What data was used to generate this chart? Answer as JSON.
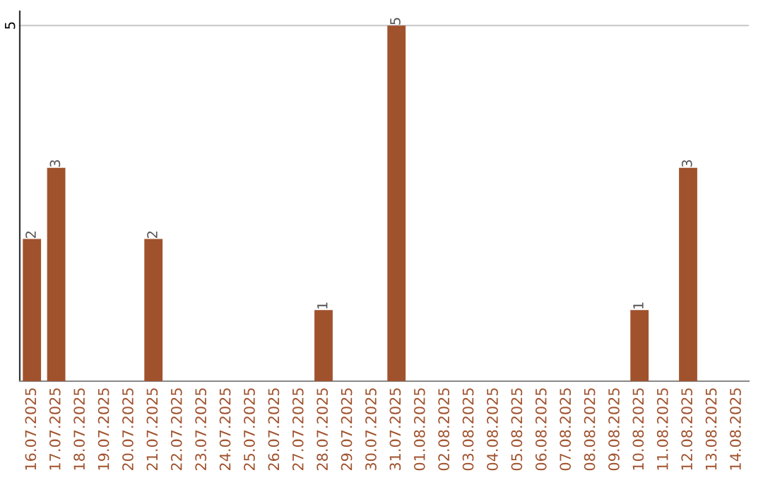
{
  "chart_data": {
    "type": "bar",
    "categories": [
      "16.07.2025",
      "17.07.2025",
      "18.07.2025",
      "19.07.2025",
      "20.07.2025",
      "21.07.2025",
      "22.07.2025",
      "23.07.2025",
      "24.07.2025",
      "25.07.2025",
      "26.07.2025",
      "27.07.2025",
      "28.07.2025",
      "29.07.2025",
      "30.07.2025",
      "31.07.2025",
      "01.08.2025",
      "02.08.2025",
      "03.08.2025",
      "04.08.2025",
      "05.08.2025",
      "06.08.2025",
      "07.08.2025",
      "08.08.2025",
      "09.08.2025",
      "10.08.2025",
      "11.08.2025",
      "12.08.2025",
      "13.08.2025",
      "14.08.2025"
    ],
    "values": [
      2,
      3,
      0,
      0,
      0,
      2,
      0,
      0,
      0,
      0,
      0,
      0,
      1,
      0,
      0,
      5,
      0,
      0,
      0,
      0,
      0,
      0,
      0,
      0,
      0,
      1,
      0,
      3,
      0,
      0
    ],
    "value_labels": [
      "2",
      "3",
      null,
      null,
      null,
      "2",
      null,
      null,
      null,
      null,
      null,
      null,
      "1",
      null,
      null,
      "5",
      null,
      null,
      null,
      null,
      null,
      null,
      null,
      null,
      null,
      "1",
      null,
      "3",
      null,
      null
    ],
    "color": "#a0522d",
    "ylim": [
      0,
      5.2
    ],
    "yticks": [
      5
    ],
    "grid": "y"
  }
}
